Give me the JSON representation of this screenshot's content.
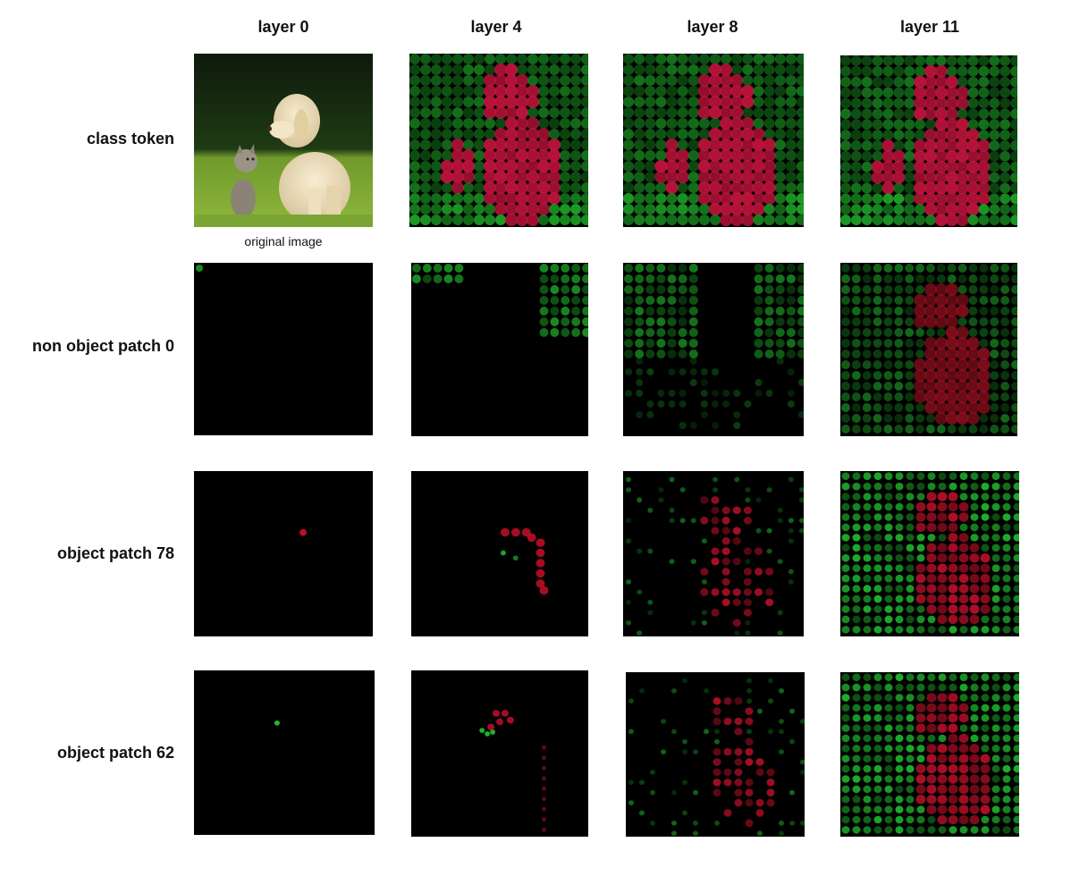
{
  "columns": [
    "layer 0",
    "layer 4",
    "layer 8",
    "layer 11"
  ],
  "rows": [
    "class token",
    "non object patch 0",
    "object patch 78",
    "object patch 62"
  ],
  "caption": "original image"
}
